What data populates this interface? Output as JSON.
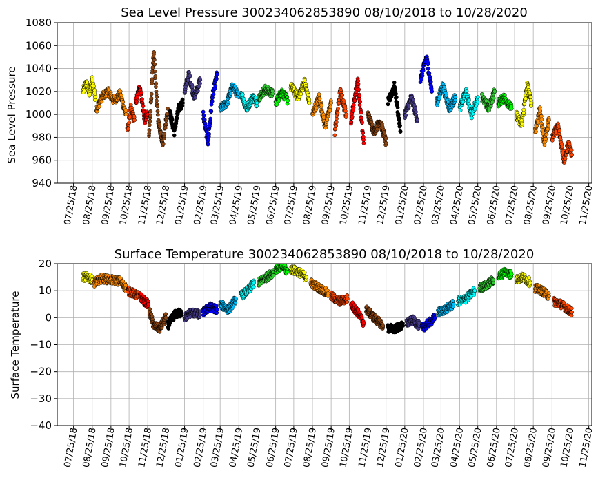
{
  "chart_data": [
    {
      "type": "scatter",
      "title": "Sea Level Pressure 300234062853890  08/10/2018 to 10/28/2020",
      "ylabel": "Sea Level Pressure",
      "ylim": [
        940,
        1080
      ],
      "yticks": [
        940,
        960,
        980,
        1000,
        1020,
        1040,
        1060,
        1080
      ],
      "xticks": [
        "07/25/18",
        "08/25/18",
        "09/25/18",
        "10/25/18",
        "11/25/18",
        "12/25/18",
        "01/25/19",
        "02/25/19",
        "03/25/19",
        "04/25/19",
        "05/25/19",
        "06/25/19",
        "07/25/19",
        "08/25/19",
        "09/25/19",
        "10/25/19",
        "11/25/19",
        "12/25/19",
        "01/25/20",
        "02/25/20",
        "03/25/20",
        "04/25/20",
        "05/25/20",
        "06/25/20",
        "07/25/20",
        "08/25/20",
        "09/25/20",
        "10/25/20",
        "11/25/20"
      ],
      "grid": true,
      "series": [
        {
          "color": "#ffff00",
          "x": [
            "2018-08-10",
            "2018-08-15",
            "2018-08-20",
            "2018-08-25",
            "2018-08-30"
          ],
          "y": [
            1020,
            1028,
            1018,
            1030,
            1015
          ]
        },
        {
          "color": "#ff8c00",
          "x": [
            "2018-09-01",
            "2018-09-10",
            "2018-09-20",
            "2018-09-30",
            "2018-10-10",
            "2018-10-20"
          ],
          "y": [
            1005,
            1015,
            1020,
            1012,
            1018,
            1000
          ]
        },
        {
          "color": "#ff4500",
          "x": [
            "2018-10-22",
            "2018-10-28",
            "2018-11-03"
          ],
          "y": [
            985,
            1005,
            995
          ]
        },
        {
          "color": "#ff0000",
          "x": [
            "2018-11-05",
            "2018-11-12",
            "2018-11-20",
            "2018-11-25"
          ],
          "y": [
            1010,
            1025,
            995,
            1000
          ]
        },
        {
          "color": "#8b4513",
          "x": [
            "2018-11-27",
            "2018-12-05",
            "2018-12-12",
            "2018-12-20",
            "2018-12-28"
          ],
          "y": [
            980,
            1055,
            995,
            975,
            1005
          ]
        },
        {
          "color": "#000000",
          "x": [
            "2019-01-01",
            "2019-01-08",
            "2019-01-15",
            "2019-01-22"
          ],
          "y": [
            1000,
            985,
            1005,
            1010
          ]
        },
        {
          "color": "#483d8b",
          "x": [
            "2019-01-25",
            "2019-02-01",
            "2019-02-10",
            "2019-02-20"
          ],
          "y": [
            1020,
            1035,
            1015,
            1030
          ]
        },
        {
          "color": "#0000ff",
          "x": [
            "2019-02-25",
            "2019-03-05",
            "2019-03-12",
            "2019-03-20"
          ],
          "y": [
            1000,
            975,
            1015,
            1035
          ]
        },
        {
          "color": "#00bfff",
          "x": [
            "2019-03-25",
            "2019-04-05",
            "2019-04-15",
            "2019-04-25"
          ],
          "y": [
            1005,
            1010,
            1025,
            1015
          ]
        },
        {
          "color": "#00ffff",
          "x": [
            "2019-04-28",
            "2019-05-08",
            "2019-05-18",
            "2019-05-25"
          ],
          "y": [
            1020,
            1005,
            1015,
            1010
          ]
        },
        {
          "color": "#32cd32",
          "x": [
            "2019-05-28",
            "2019-06-08",
            "2019-06-20"
          ],
          "y": [
            1015,
            1022,
            1018
          ]
        },
        {
          "color": "#00ff00",
          "x": [
            "2019-06-25",
            "2019-07-05",
            "2019-07-15"
          ],
          "y": [
            1010,
            1020,
            1012
          ]
        },
        {
          "color": "#ffff00",
          "x": [
            "2019-07-20",
            "2019-08-01",
            "2019-08-12",
            "2019-08-20"
          ],
          "y": [
            1025,
            1015,
            1028,
            1010
          ]
        },
        {
          "color": "#ff8c00",
          "x": [
            "2019-08-25",
            "2019-09-05",
            "2019-09-15",
            "2019-09-25"
          ],
          "y": [
            1000,
            1015,
            990,
            1010
          ]
        },
        {
          "color": "#ff4500",
          "x": [
            "2019-10-01",
            "2019-10-10",
            "2019-10-20"
          ],
          "y": [
            985,
            1020,
            1000
          ]
        },
        {
          "color": "#ff0000",
          "x": [
            "2019-10-28",
            "2019-11-08",
            "2019-11-18"
          ],
          "y": [
            995,
            1030,
            975
          ]
        },
        {
          "color": "#8b4513",
          "x": [
            "2019-11-25",
            "2019-12-05",
            "2019-12-15",
            "2019-12-25"
          ],
          "y": [
            1000,
            985,
            995,
            975
          ]
        },
        {
          "color": "#000000",
          "x": [
            "2019-12-28",
            "2020-01-08",
            "2020-01-18"
          ],
          "y": [
            1010,
            1025,
            985
          ]
        },
        {
          "color": "#483d8b",
          "x": [
            "2020-01-25",
            "2020-02-05",
            "2020-02-15"
          ],
          "y": [
            1000,
            1015,
            995
          ]
        },
        {
          "color": "#0000ff",
          "x": [
            "2020-02-20",
            "2020-03-01",
            "2020-03-10"
          ],
          "y": [
            1030,
            1050,
            1020
          ]
        },
        {
          "color": "#00bfff",
          "x": [
            "2020-03-18",
            "2020-03-28",
            "2020-04-08",
            "2020-04-18"
          ],
          "y": [
            1010,
            1025,
            1005,
            1015
          ]
        },
        {
          "color": "#00ffff",
          "x": [
            "2020-04-25",
            "2020-05-05",
            "2020-05-15",
            "2020-05-25"
          ],
          "y": [
            1005,
            1020,
            1000,
            1015
          ]
        },
        {
          "color": "#32cd32",
          "x": [
            "2020-06-01",
            "2020-06-12",
            "2020-06-22"
          ],
          "y": [
            1015,
            1005,
            1020
          ]
        },
        {
          "color": "#00ff00",
          "x": [
            "2020-06-28",
            "2020-07-08",
            "2020-07-20"
          ],
          "y": [
            1010,
            1015,
            1005
          ]
        },
        {
          "color": "#ffff00",
          "x": [
            "2020-07-28",
            "2020-08-05",
            "2020-08-15",
            "2020-08-22"
          ],
          "y": [
            1000,
            990,
            1025,
            1010
          ]
        },
        {
          "color": "#ff8c00",
          "x": [
            "2020-08-28",
            "2020-09-05",
            "2020-09-12",
            "2020-09-20"
          ],
          "y": [
            985,
            1005,
            975,
            995
          ]
        },
        {
          "color": "#ff4500",
          "x": [
            "2020-09-25",
            "2020-10-05",
            "2020-10-15",
            "2020-10-22",
            "2020-10-28"
          ],
          "y": [
            980,
            990,
            960,
            975,
            965
          ]
        }
      ]
    },
    {
      "type": "scatter",
      "title": "Surface Temperature 300234062853890  08/10/2018 to 10/28/2020",
      "ylabel": "Surface Temperature",
      "ylim": [
        -40,
        20
      ],
      "yticks": [
        -40,
        -30,
        -20,
        -10,
        0,
        10,
        20
      ],
      "ytick_labels": [
        "−40",
        "−30",
        "−20",
        "−10",
        "0",
        "10",
        "20"
      ],
      "xticks": [
        "07/25/18",
        "08/25/18",
        "09/25/18",
        "10/25/18",
        "11/25/18",
        "12/25/18",
        "01/25/19",
        "02/25/19",
        "03/25/19",
        "04/25/19",
        "05/25/19",
        "06/25/19",
        "07/25/19",
        "08/25/19",
        "09/25/19",
        "10/25/19",
        "11/25/19",
        "12/25/19",
        "01/25/20",
        "02/25/20",
        "03/25/20",
        "04/25/20",
        "05/25/20",
        "06/25/20",
        "07/25/20",
        "08/25/20",
        "09/25/20",
        "10/25/20",
        "11/25/20"
      ],
      "grid": true,
      "series": [
        {
          "color": "#ffff00",
          "x": [
            "2018-08-10",
            "2018-08-18",
            "2018-08-25"
          ],
          "y": [
            15,
            15,
            14
          ]
        },
        {
          "color": "#ff8c00",
          "x": [
            "2018-08-28",
            "2018-09-10",
            "2018-09-25",
            "2018-10-10",
            "2018-10-20"
          ],
          "y": [
            13,
            14.5,
            14,
            13.5,
            11
          ]
        },
        {
          "color": "#ff4500",
          "x": [
            "2018-10-22",
            "2018-11-01",
            "2018-11-10"
          ],
          "y": [
            10,
            9,
            8
          ]
        },
        {
          "color": "#ff0000",
          "x": [
            "2018-11-12",
            "2018-11-20",
            "2018-11-26"
          ],
          "y": [
            8,
            6,
            5
          ]
        },
        {
          "color": "#8b4513",
          "x": [
            "2018-11-28",
            "2018-12-05",
            "2018-12-15",
            "2018-12-25"
          ],
          "y": [
            2,
            -3,
            -4,
            0
          ]
        },
        {
          "color": "#000000",
          "x": [
            "2018-12-28",
            "2019-01-08",
            "2019-01-20"
          ],
          "y": [
            -3,
            1,
            2
          ]
        },
        {
          "color": "#483d8b",
          "x": [
            "2019-01-25",
            "2019-02-05",
            "2019-02-20"
          ],
          "y": [
            0,
            2,
            1
          ]
        },
        {
          "color": "#0000ff",
          "x": [
            "2019-02-25",
            "2019-03-08",
            "2019-03-20"
          ],
          "y": [
            2,
            4,
            3
          ]
        },
        {
          "color": "#00bfff",
          "x": [
            "2019-03-25",
            "2019-04-08",
            "2019-04-20"
          ],
          "y": [
            5,
            3,
            7
          ]
        },
        {
          "color": "#00ffff",
          "x": [
            "2019-04-28",
            "2019-05-10",
            "2019-05-20"
          ],
          "y": [
            8,
            10,
            13
          ]
        },
        {
          "color": "#32cd32",
          "x": [
            "2019-05-28",
            "2019-06-10",
            "2019-06-22"
          ],
          "y": [
            13,
            15,
            17
          ]
        },
        {
          "color": "#00ff00",
          "x": [
            "2019-06-25",
            "2019-07-05",
            "2019-07-15"
          ],
          "y": [
            18,
            19,
            17
          ]
        },
        {
          "color": "#ffff00",
          "x": [
            "2019-07-20",
            "2019-08-01",
            "2019-08-15"
          ],
          "y": [
            18,
            17,
            15
          ]
        },
        {
          "color": "#ff8c00",
          "x": [
            "2019-08-22",
            "2019-09-05",
            "2019-09-20"
          ],
          "y": [
            13,
            11,
            9
          ]
        },
        {
          "color": "#ff4500",
          "x": [
            "2019-09-25",
            "2019-10-08",
            "2019-10-22"
          ],
          "y": [
            8,
            6,
            7
          ]
        },
        {
          "color": "#ff0000",
          "x": [
            "2019-10-28",
            "2019-11-08",
            "2019-11-18"
          ],
          "y": [
            5,
            2,
            -2
          ]
        },
        {
          "color": "#8b4513",
          "x": [
            "2019-11-22",
            "2019-12-05",
            "2019-12-20"
          ],
          "y": [
            3,
            0,
            -3
          ]
        },
        {
          "color": "#000000",
          "x": [
            "2019-12-28",
            "2020-01-10",
            "2020-01-22"
          ],
          "y": [
            -4,
            -4,
            -3
          ]
        },
        {
          "color": "#483d8b",
          "x": [
            "2020-01-28",
            "2020-02-08",
            "2020-02-18"
          ],
          "y": [
            -2,
            -1,
            -3
          ]
        },
        {
          "color": "#0000ff",
          "x": [
            "2020-02-22",
            "2020-03-05",
            "2020-03-15"
          ],
          "y": [
            -4,
            -2,
            0
          ]
        },
        {
          "color": "#00bfff",
          "x": [
            "2020-03-20",
            "2020-04-01",
            "2020-04-15"
          ],
          "y": [
            2,
            3,
            5
          ]
        },
        {
          "color": "#00ffff",
          "x": [
            "2020-04-22",
            "2020-05-05",
            "2020-05-20"
          ],
          "y": [
            6,
            7,
            10
          ]
        },
        {
          "color": "#32cd32",
          "x": [
            "2020-05-28",
            "2020-06-08",
            "2020-06-20"
          ],
          "y": [
            11,
            12,
            14
          ]
        },
        {
          "color": "#00ff00",
          "x": [
            "2020-06-28",
            "2020-07-08",
            "2020-07-20"
          ],
          "y": [
            15,
            17,
            16
          ]
        },
        {
          "color": "#ffff00",
          "x": [
            "2020-07-28",
            "2020-08-08",
            "2020-08-20"
          ],
          "y": [
            14,
            15,
            13
          ]
        },
        {
          "color": "#ff8c00",
          "x": [
            "2020-08-28",
            "2020-09-08",
            "2020-09-20"
          ],
          "y": [
            11,
            10,
            8
          ]
        },
        {
          "color": "#ff4500",
          "x": [
            "2020-09-28",
            "2020-10-10",
            "2020-10-28"
          ],
          "y": [
            6,
            5,
            2
          ]
        }
      ]
    }
  ]
}
